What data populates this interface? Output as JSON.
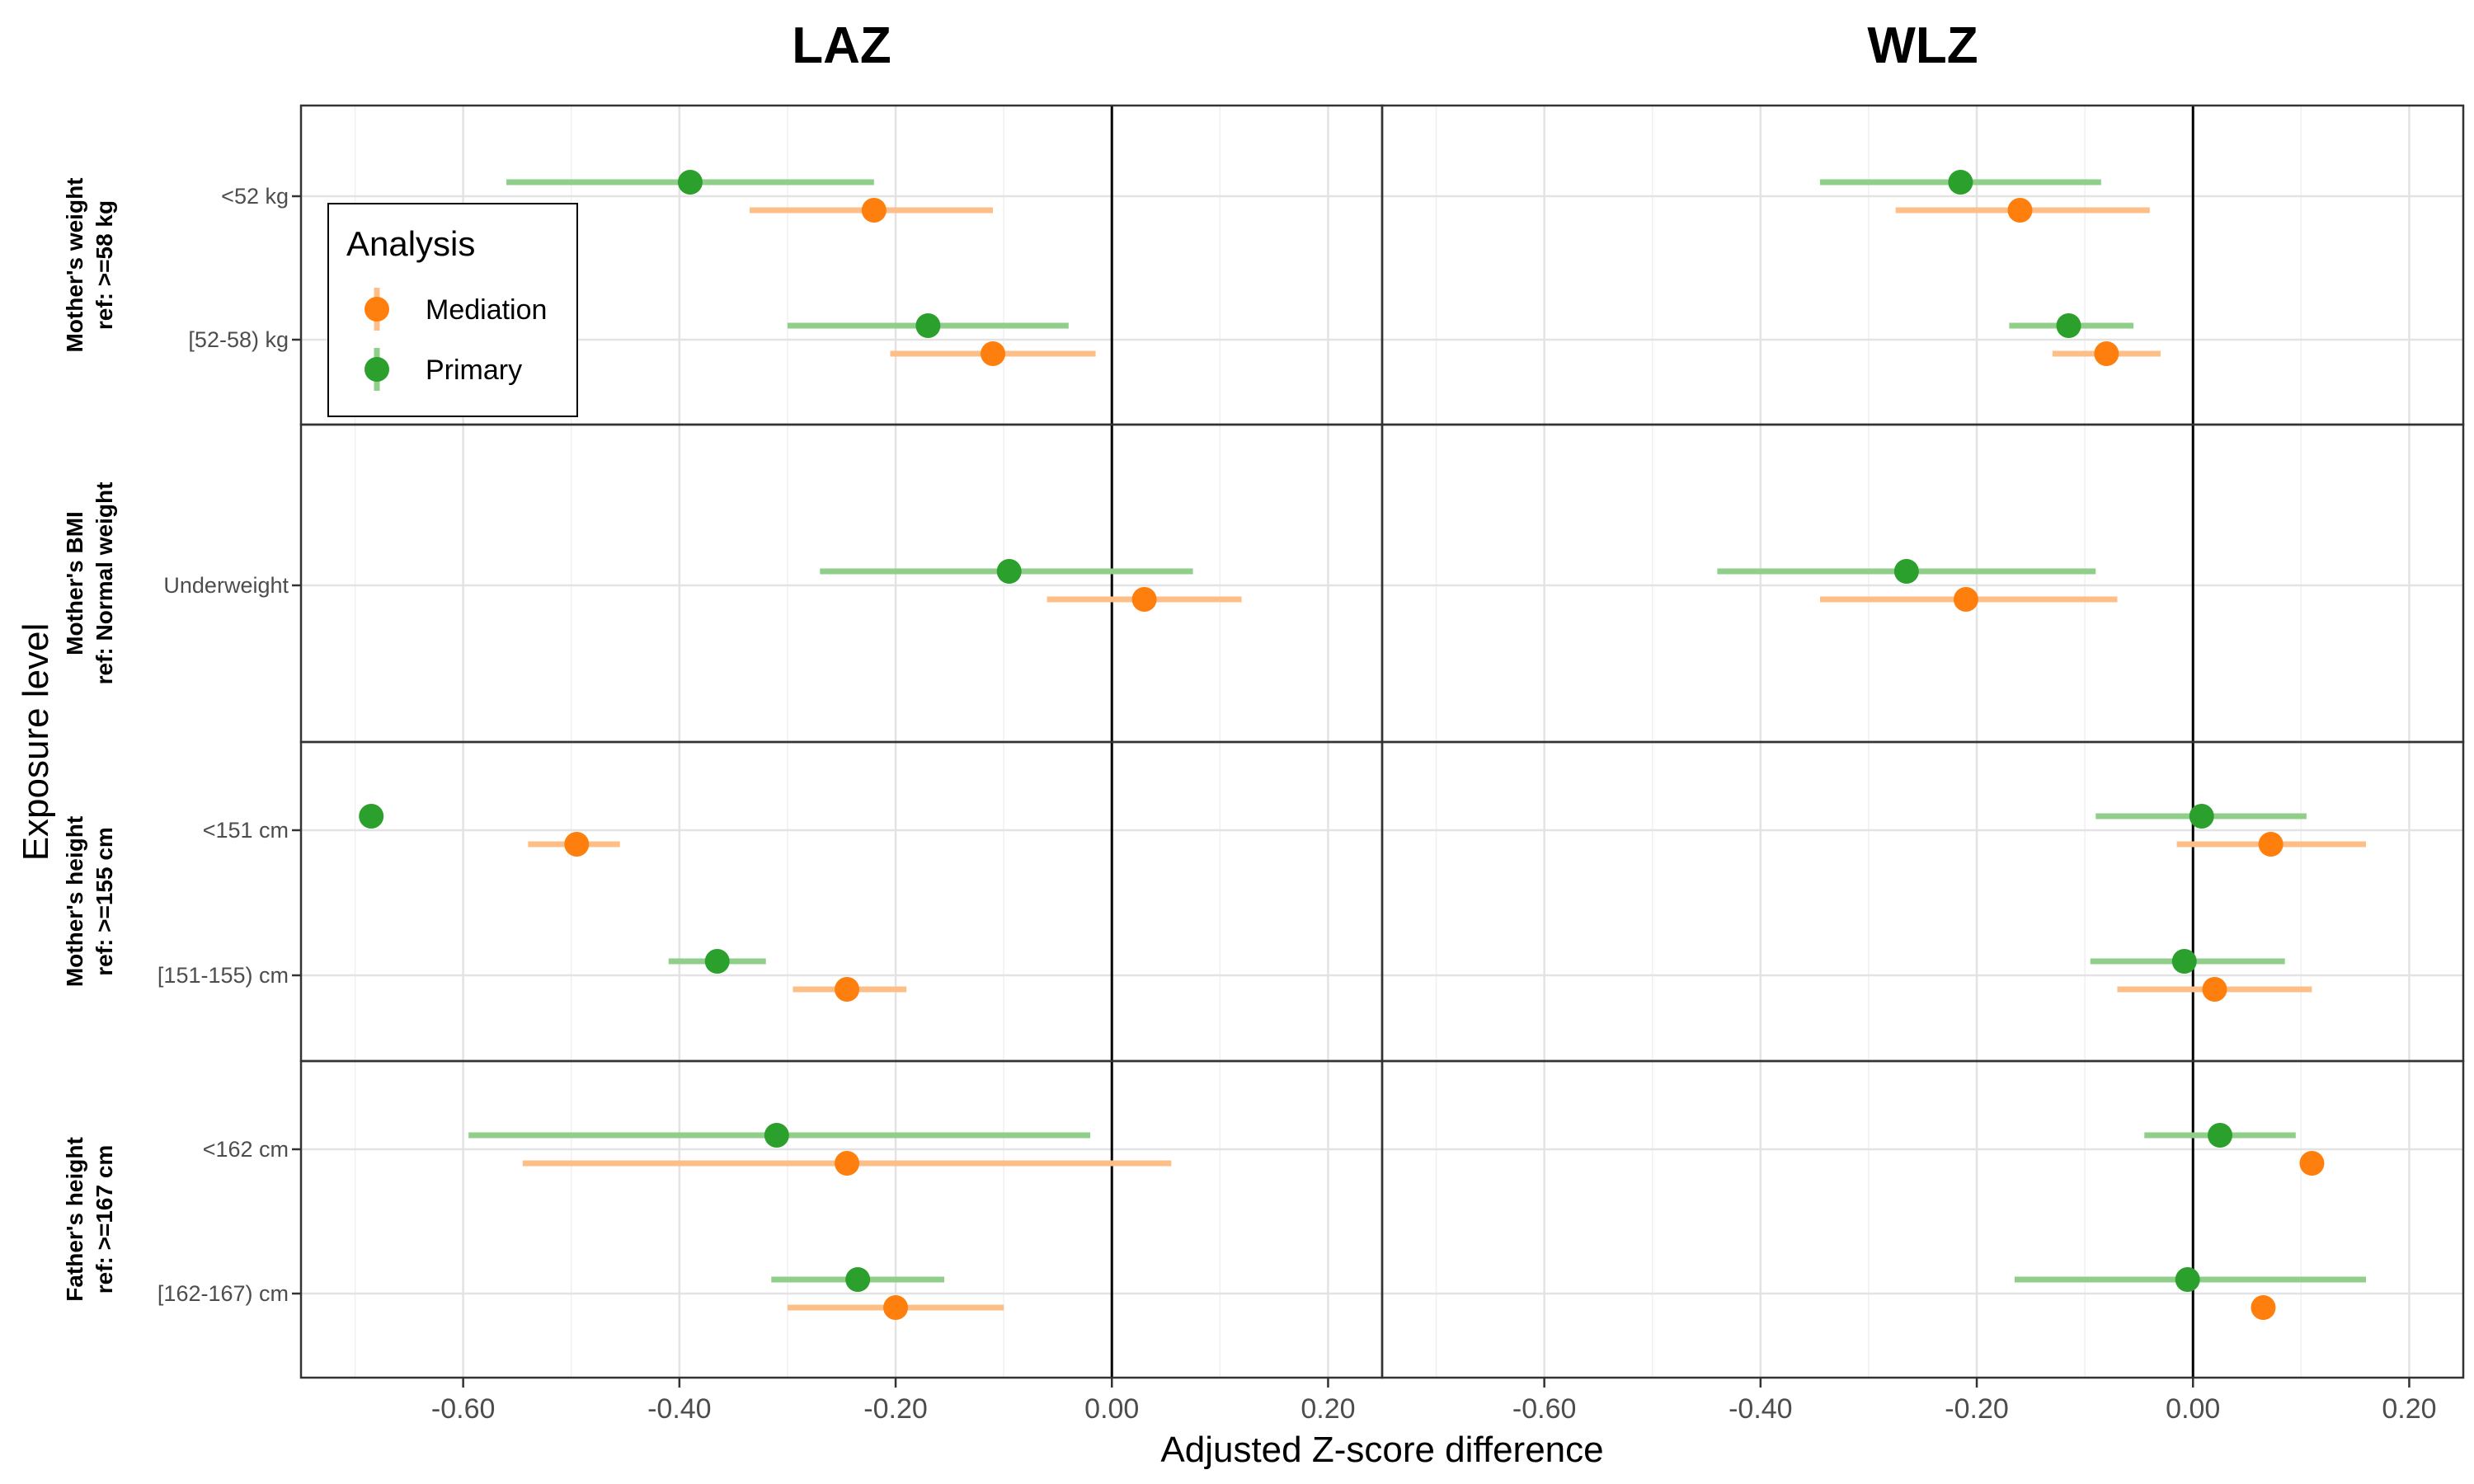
{
  "chart_data": {
    "type": "scatter",
    "subtype": "forest-plot-with-confidence-intervals",
    "xlabel": "Adjusted Z-score difference",
    "ylabel": "Exposure level",
    "xlim": [
      -0.75,
      0.25
    ],
    "x_ticks": [
      "-0.60",
      "-0.40",
      "-0.20",
      "0.00",
      "0.20"
    ],
    "x_tick_values": [
      -0.6,
      -0.4,
      -0.2,
      0.0,
      0.2
    ],
    "grid": true,
    "legend": {
      "title": "Analysis",
      "placement": "top-left",
      "entries": [
        {
          "name": "Mediation",
          "color": "#ff7f0e",
          "ci_color": "#fdbf87"
        },
        {
          "name": "Primary",
          "color": "#2ca02c",
          "ci_color": "#8fcf8a"
        }
      ]
    },
    "columns": [
      {
        "title": "LAZ"
      },
      {
        "title": "WLZ"
      }
    ],
    "rows": [
      {
        "strip_line1": "Mother's weight",
        "strip_line2": "ref: >=58 kg",
        "categories": [
          "<52 kg",
          "[52-58) kg"
        ],
        "points": [
          {
            "col": 0,
            "cat": 0,
            "series": "Primary",
            "est": -0.39,
            "lo": -0.56,
            "hi": -0.22
          },
          {
            "col": 0,
            "cat": 0,
            "series": "Mediation",
            "est": -0.22,
            "lo": -0.335,
            "hi": -0.11
          },
          {
            "col": 0,
            "cat": 1,
            "series": "Primary",
            "est": -0.17,
            "lo": -0.3,
            "hi": -0.04
          },
          {
            "col": 0,
            "cat": 1,
            "series": "Mediation",
            "est": -0.11,
            "lo": -0.205,
            "hi": -0.015
          },
          {
            "col": 1,
            "cat": 0,
            "series": "Primary",
            "est": -0.215,
            "lo": -0.345,
            "hi": -0.085
          },
          {
            "col": 1,
            "cat": 0,
            "series": "Mediation",
            "est": -0.16,
            "lo": -0.275,
            "hi": -0.04
          },
          {
            "col": 1,
            "cat": 1,
            "series": "Primary",
            "est": -0.115,
            "lo": -0.17,
            "hi": -0.055
          },
          {
            "col": 1,
            "cat": 1,
            "series": "Mediation",
            "est": -0.08,
            "lo": -0.13,
            "hi": -0.03
          }
        ]
      },
      {
        "strip_line1": "Mother's BMI",
        "strip_line2": "ref: Normal weight",
        "categories": [
          "Underweight"
        ],
        "points": [
          {
            "col": 0,
            "cat": 0,
            "series": "Primary",
            "est": -0.095,
            "lo": -0.27,
            "hi": 0.075
          },
          {
            "col": 0,
            "cat": 0,
            "series": "Mediation",
            "est": 0.03,
            "lo": -0.06,
            "hi": 0.12
          },
          {
            "col": 1,
            "cat": 0,
            "series": "Primary",
            "est": -0.265,
            "lo": -0.44,
            "hi": -0.09
          },
          {
            "col": 1,
            "cat": 0,
            "series": "Mediation",
            "est": -0.21,
            "lo": -0.345,
            "hi": -0.07
          }
        ]
      },
      {
        "strip_line1": "Mother's height",
        "strip_line2": "ref: >=155 cm",
        "categories": [
          "<151 cm",
          "[151-155) cm"
        ],
        "points": [
          {
            "col": 0,
            "cat": 0,
            "series": "Primary",
            "est": -0.685,
            "lo": -0.685,
            "hi": -0.685
          },
          {
            "col": 0,
            "cat": 0,
            "series": "Mediation",
            "est": -0.495,
            "lo": -0.54,
            "hi": -0.455
          },
          {
            "col": 0,
            "cat": 1,
            "series": "Primary",
            "est": -0.365,
            "lo": -0.41,
            "hi": -0.32
          },
          {
            "col": 0,
            "cat": 1,
            "series": "Mediation",
            "est": -0.245,
            "lo": -0.295,
            "hi": -0.19
          },
          {
            "col": 1,
            "cat": 0,
            "series": "Primary",
            "est": 0.008,
            "lo": -0.09,
            "hi": 0.105
          },
          {
            "col": 1,
            "cat": 0,
            "series": "Mediation",
            "est": 0.072,
            "lo": -0.015,
            "hi": 0.16
          },
          {
            "col": 1,
            "cat": 1,
            "series": "Primary",
            "est": -0.008,
            "lo": -0.095,
            "hi": 0.085
          },
          {
            "col": 1,
            "cat": 1,
            "series": "Mediation",
            "est": 0.02,
            "lo": -0.07,
            "hi": 0.11
          }
        ]
      },
      {
        "strip_line1": "Father's height",
        "strip_line2": "ref: >=167 cm",
        "categories": [
          "<162 cm",
          "[162-167) cm"
        ],
        "points": [
          {
            "col": 0,
            "cat": 0,
            "series": "Primary",
            "est": -0.31,
            "lo": -0.595,
            "hi": -0.02
          },
          {
            "col": 0,
            "cat": 0,
            "series": "Mediation",
            "est": -0.245,
            "lo": -0.545,
            "hi": 0.055
          },
          {
            "col": 0,
            "cat": 1,
            "series": "Primary",
            "est": -0.235,
            "lo": -0.315,
            "hi": -0.155
          },
          {
            "col": 0,
            "cat": 1,
            "series": "Mediation",
            "est": -0.2,
            "lo": -0.3,
            "hi": -0.1
          },
          {
            "col": 1,
            "cat": 0,
            "series": "Primary",
            "est": 0.025,
            "lo": -0.045,
            "hi": 0.095
          },
          {
            "col": 1,
            "cat": 0,
            "series": "Mediation",
            "est": 0.11,
            "lo": 0.11,
            "hi": 0.11
          },
          {
            "col": 1,
            "cat": 1,
            "series": "Primary",
            "est": -0.005,
            "lo": -0.165,
            "hi": 0.16
          },
          {
            "col": 1,
            "cat": 1,
            "series": "Mediation",
            "est": 0.065,
            "lo": 0.065,
            "hi": 0.065
          }
        ]
      }
    ]
  }
}
